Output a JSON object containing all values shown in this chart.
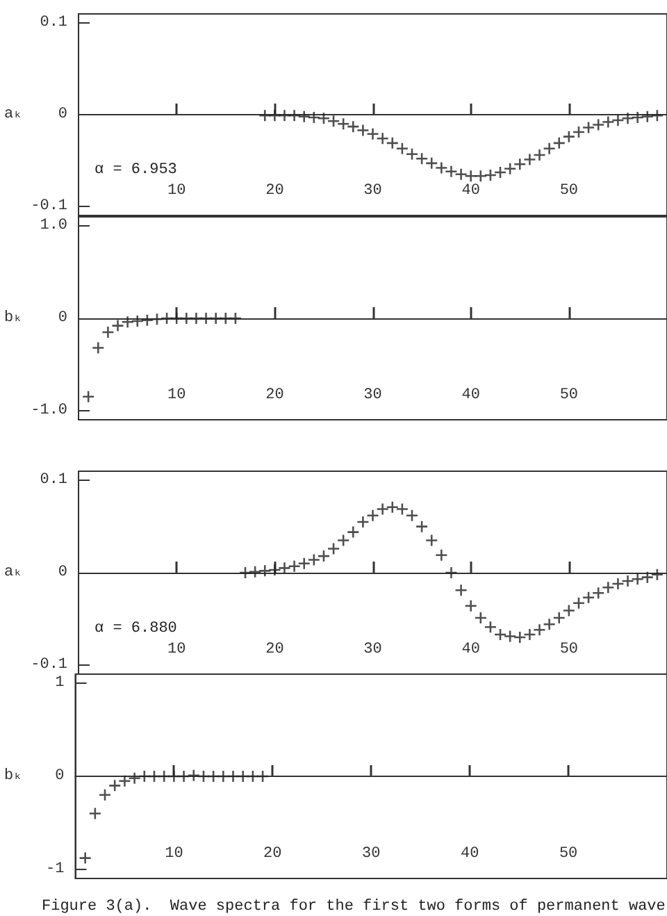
{
  "chart_data": [
    {
      "type": "scatter",
      "ylabel": "aₖ",
      "marker": "cross",
      "annotations": [
        "α = 6.953"
      ],
      "xlim": [
        0,
        60
      ],
      "xticks": [
        10,
        20,
        30,
        40,
        50
      ],
      "ylim": [
        -0.11,
        0.11
      ],
      "yticks": [
        -0.1,
        0,
        0.1
      ],
      "series": [
        {
          "color": "#222222",
          "x": [
            19,
            20,
            21,
            22,
            23,
            24,
            25,
            26,
            27,
            28,
            29,
            30,
            31,
            32,
            33,
            34,
            35,
            36,
            37,
            38,
            39,
            40,
            41,
            42,
            43,
            44,
            45,
            46,
            47,
            48,
            49,
            50,
            51,
            52,
            53,
            54,
            55,
            56,
            57,
            58,
            59
          ],
          "values": [
            -0.001,
            -0.001,
            -0.001,
            -0.001,
            -0.002,
            -0.003,
            -0.004,
            -0.007,
            -0.01,
            -0.013,
            -0.017,
            -0.021,
            -0.026,
            -0.031,
            -0.037,
            -0.043,
            -0.048,
            -0.053,
            -0.058,
            -0.062,
            -0.065,
            -0.067,
            -0.067,
            -0.066,
            -0.063,
            -0.059,
            -0.054,
            -0.049,
            -0.044,
            -0.037,
            -0.031,
            -0.024,
            -0.019,
            -0.014,
            -0.011,
            -0.008,
            -0.006,
            -0.004,
            -0.003,
            -0.002,
            -0.001
          ]
        }
      ]
    },
    {
      "type": "scatter",
      "ylabel": "bₖ",
      "marker": "cross",
      "xlim": [
        0,
        60
      ],
      "xticks": [
        10,
        20,
        30,
        40,
        50
      ],
      "ylim": [
        -1.1,
        1.1
      ],
      "yticks": [
        {
          "value": -1,
          "label": "-1.0"
        },
        0,
        {
          "value": 1,
          "label": "1.0"
        }
      ],
      "series": [
        {
          "color": "#222222",
          "x": [
            1,
            2,
            3,
            4,
            5,
            6,
            7,
            8,
            9,
            10,
            11,
            12,
            13,
            14,
            15,
            16
          ],
          "values": [
            -0.85,
            -0.32,
            -0.15,
            -0.08,
            -0.04,
            -0.03,
            -0.02,
            -0.01,
            0,
            0,
            0,
            0,
            0,
            0,
            0,
            0
          ]
        }
      ]
    },
    {
      "type": "scatter",
      "ylabel": "aₖ",
      "marker": "cross",
      "annotations": [
        "α = 6.880"
      ],
      "xlim": [
        0,
        60
      ],
      "xticks": [
        10,
        20,
        30,
        40,
        50
      ],
      "ylim": [
        -0.11,
        0.11
      ],
      "yticks": [
        -0.1,
        0,
        0.1
      ],
      "series": [
        {
          "color": "#222222",
          "x": [
            17,
            18,
            19,
            20,
            21,
            22,
            23,
            24,
            25,
            26,
            27,
            28,
            29,
            30,
            31,
            32,
            33,
            34,
            35,
            36,
            37,
            38,
            39,
            40,
            41,
            42,
            43,
            44,
            45,
            46,
            47,
            48,
            49,
            50,
            51,
            52,
            53,
            54,
            55,
            56,
            57,
            58,
            59
          ],
          "values": [
            0,
            0.001,
            0.002,
            0.003,
            0.005,
            0.007,
            0.01,
            0.014,
            0.018,
            0.026,
            0.035,
            0.044,
            0.055,
            0.062,
            0.069,
            0.071,
            0.069,
            0.062,
            0.05,
            0.035,
            0.019,
            0,
            -0.019,
            -0.036,
            -0.049,
            -0.059,
            -0.067,
            -0.069,
            -0.07,
            -0.067,
            -0.062,
            -0.056,
            -0.049,
            -0.041,
            -0.033,
            -0.027,
            -0.022,
            -0.016,
            -0.012,
            -0.009,
            -0.007,
            -0.005,
            -0.002
          ]
        }
      ]
    },
    {
      "type": "scatter",
      "ylabel": "bₖ",
      "marker": "cross",
      "annotations": [
        "Figure 3(a).  Wave spectra for the first two forms of permanent wave"
      ],
      "xlim": [
        0,
        60
      ],
      "xticks": [
        10,
        20,
        30,
        40,
        50
      ],
      "ylim": [
        -1.1,
        1.1
      ],
      "yticks": [
        -1,
        0,
        1
      ],
      "series": [
        {
          "color": "#222222",
          "x": [
            1,
            2,
            3,
            4,
            5,
            6,
            7,
            8,
            9,
            10,
            11,
            12,
            13,
            14,
            15,
            16,
            17,
            18,
            19
          ],
          "values": [
            -0.88,
            -0.4,
            -0.2,
            -0.1,
            -0.05,
            -0.02,
            0,
            0,
            0,
            0,
            0,
            0.01,
            0,
            0,
            0,
            0,
            0,
            0,
            0
          ]
        }
      ]
    }
  ]
}
